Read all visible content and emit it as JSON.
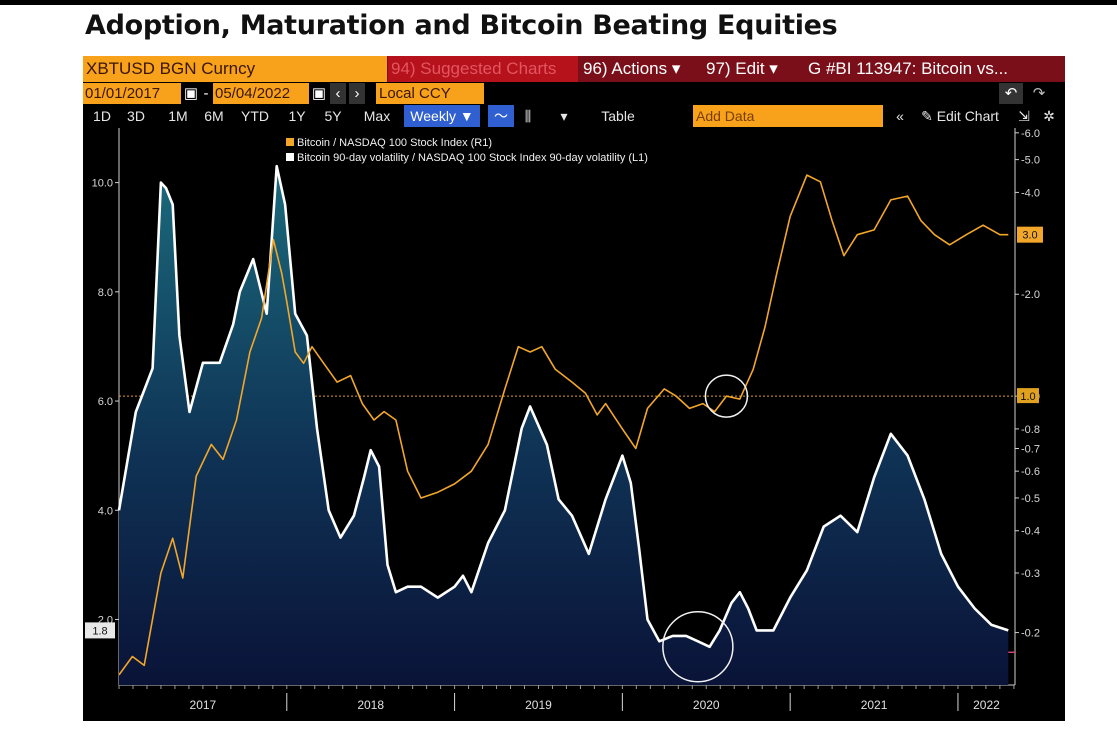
{
  "headline": "Adoption, Maturation and Bitcoin Beating Equities",
  "toolbar": {
    "ticker": "XBTUSD BGN Curncy",
    "suggested": "94) Suggested Charts",
    "actions": "96) Actions ▾",
    "edit": "97) Edit ▾",
    "chart_id": "G #BI 113947: Bitcoin vs...",
    "start_date": "01/01/2017",
    "date_sep": "-",
    "end_date": "05/04/2022",
    "currency": "Local CCY",
    "cal_icon": "calendar-icon",
    "undo_icon": "undo-icon",
    "redo_icon": "redo-icon",
    "ranges": [
      "1D",
      "3D",
      "1M",
      "6M",
      "YTD",
      "1Y",
      "5Y",
      "Max"
    ],
    "frequency": "Weekly ▼",
    "table": "Table",
    "add_data": "Add Data",
    "edit_chart": "Edit Chart"
  },
  "chart_data": {
    "type": "line",
    "legend": [
      {
        "text": "Bitcoin / NASDAQ 100 Stock Index (R1)",
        "color": "#f2a72a"
      },
      {
        "text": "Bitcoin 90-day volatility / NASDAQ 100 Stock Index 90-day volatility (L1)",
        "color": "#ffffff"
      }
    ],
    "legend_position": "top-left",
    "x_ticks": [
      "2017",
      "2018",
      "2019",
      "2020",
      "2021",
      "2022"
    ],
    "x_range": [
      2017.0,
      2022.34
    ],
    "left_axis": {
      "ticks": [
        "2.0",
        "4.0",
        "6.0",
        "8.0",
        "10.0"
      ],
      "ylim": [
        0.8,
        11.0
      ]
    },
    "right_axis": {
      "scale": "log",
      "ticks": [
        "0.2",
        "0.3",
        "0.4",
        "0.5",
        "0.6",
        "0.7",
        "0.8",
        "1.0",
        "2.0",
        "4.0",
        "5.0",
        "6.0"
      ],
      "ylim": [
        0.14,
        6.2
      ]
    },
    "last_value_left": "1.8",
    "last_value_right": "3.0",
    "ref_value_right": "1.0",
    "ref_line_left": 1.4,
    "series": [
      {
        "name": "Bitcoin 90-day volatility / NASDAQ 100 Stock Index 90-day volatility (L1)",
        "axis": "left",
        "color": "#ffffff",
        "fill": true,
        "points": [
          [
            2017.0,
            4.0
          ],
          [
            2017.1,
            5.8
          ],
          [
            2017.2,
            6.6
          ],
          [
            2017.25,
            10.0
          ],
          [
            2017.28,
            9.9
          ],
          [
            2017.32,
            9.6
          ],
          [
            2017.36,
            7.2
          ],
          [
            2017.42,
            5.8
          ],
          [
            2017.5,
            6.7
          ],
          [
            2017.6,
            6.7
          ],
          [
            2017.68,
            7.4
          ],
          [
            2017.72,
            8.0
          ],
          [
            2017.8,
            8.6
          ],
          [
            2017.88,
            7.6
          ],
          [
            2017.94,
            10.3
          ],
          [
            2017.99,
            9.6
          ],
          [
            2018.05,
            7.6
          ],
          [
            2018.12,
            7.2
          ],
          [
            2018.18,
            5.5
          ],
          [
            2018.25,
            4.0
          ],
          [
            2018.32,
            3.5
          ],
          [
            2018.4,
            3.9
          ],
          [
            2018.46,
            4.6
          ],
          [
            2018.5,
            5.1
          ],
          [
            2018.55,
            4.8
          ],
          [
            2018.6,
            3.0
          ],
          [
            2018.65,
            2.5
          ],
          [
            2018.72,
            2.6
          ],
          [
            2018.8,
            2.6
          ],
          [
            2018.9,
            2.4
          ],
          [
            2019.0,
            2.6
          ],
          [
            2019.05,
            2.8
          ],
          [
            2019.1,
            2.5
          ],
          [
            2019.2,
            3.4
          ],
          [
            2019.3,
            4.0
          ],
          [
            2019.4,
            5.5
          ],
          [
            2019.45,
            5.9
          ],
          [
            2019.55,
            5.2
          ],
          [
            2019.62,
            4.2
          ],
          [
            2019.7,
            3.9
          ],
          [
            2019.8,
            3.2
          ],
          [
            2019.9,
            4.2
          ],
          [
            2020.0,
            5.0
          ],
          [
            2020.05,
            4.5
          ],
          [
            2020.1,
            3.3
          ],
          [
            2020.15,
            2.0
          ],
          [
            2020.22,
            1.6
          ],
          [
            2020.3,
            1.7
          ],
          [
            2020.38,
            1.7
          ],
          [
            2020.45,
            1.6
          ],
          [
            2020.52,
            1.5
          ],
          [
            2020.58,
            1.8
          ],
          [
            2020.65,
            2.3
          ],
          [
            2020.7,
            2.5
          ],
          [
            2020.75,
            2.2
          ],
          [
            2020.8,
            1.8
          ],
          [
            2020.9,
            1.8
          ],
          [
            2021.0,
            2.4
          ],
          [
            2021.1,
            2.9
          ],
          [
            2021.2,
            3.7
          ],
          [
            2021.3,
            3.9
          ],
          [
            2021.4,
            3.6
          ],
          [
            2021.5,
            4.6
          ],
          [
            2021.6,
            5.4
          ],
          [
            2021.7,
            5.0
          ],
          [
            2021.8,
            4.2
          ],
          [
            2021.9,
            3.2
          ],
          [
            2022.0,
            2.6
          ],
          [
            2022.1,
            2.2
          ],
          [
            2022.2,
            1.9
          ],
          [
            2022.3,
            1.8
          ]
        ]
      },
      {
        "name": "Bitcoin / NASDAQ 100 Stock Index (R1)",
        "axis": "right",
        "color": "#f2a72a",
        "fill": false,
        "points": [
          [
            2017.0,
            0.15
          ],
          [
            2017.08,
            0.17
          ],
          [
            2017.15,
            0.16
          ],
          [
            2017.25,
            0.3
          ],
          [
            2017.32,
            0.38
          ],
          [
            2017.38,
            0.29
          ],
          [
            2017.46,
            0.58
          ],
          [
            2017.55,
            0.72
          ],
          [
            2017.62,
            0.65
          ],
          [
            2017.7,
            0.85
          ],
          [
            2017.78,
            1.35
          ],
          [
            2017.85,
            1.7
          ],
          [
            2017.92,
            2.9
          ],
          [
            2017.97,
            2.3
          ],
          [
            2018.0,
            1.9
          ],
          [
            2018.05,
            1.35
          ],
          [
            2018.1,
            1.25
          ],
          [
            2018.15,
            1.4
          ],
          [
            2018.22,
            1.25
          ],
          [
            2018.3,
            1.1
          ],
          [
            2018.38,
            1.15
          ],
          [
            2018.45,
            0.95
          ],
          [
            2018.52,
            0.85
          ],
          [
            2018.58,
            0.9
          ],
          [
            2018.65,
            0.85
          ],
          [
            2018.72,
            0.6
          ],
          [
            2018.8,
            0.5
          ],
          [
            2018.9,
            0.52
          ],
          [
            2019.0,
            0.55
          ],
          [
            2019.1,
            0.6
          ],
          [
            2019.2,
            0.72
          ],
          [
            2019.3,
            1.05
          ],
          [
            2019.38,
            1.4
          ],
          [
            2019.45,
            1.35
          ],
          [
            2019.52,
            1.4
          ],
          [
            2019.6,
            1.2
          ],
          [
            2019.7,
            1.1
          ],
          [
            2019.78,
            1.02
          ],
          [
            2019.85,
            0.88
          ],
          [
            2019.9,
            0.95
          ],
          [
            2020.0,
            0.8
          ],
          [
            2020.08,
            0.7
          ],
          [
            2020.15,
            0.92
          ],
          [
            2020.25,
            1.05
          ],
          [
            2020.32,
            1.0
          ],
          [
            2020.4,
            0.92
          ],
          [
            2020.48,
            0.95
          ],
          [
            2020.55,
            0.9
          ],
          [
            2020.62,
            1.0
          ],
          [
            2020.7,
            0.98
          ],
          [
            2020.78,
            1.2
          ],
          [
            2020.85,
            1.6
          ],
          [
            2020.92,
            2.3
          ],
          [
            2021.0,
            3.4
          ],
          [
            2021.1,
            4.5
          ],
          [
            2021.18,
            4.3
          ],
          [
            2021.25,
            3.3
          ],
          [
            2021.32,
            2.6
          ],
          [
            2021.4,
            3.0
          ],
          [
            2021.5,
            3.1
          ],
          [
            2021.6,
            3.8
          ],
          [
            2021.7,
            3.9
          ],
          [
            2021.78,
            3.3
          ],
          [
            2021.86,
            3.0
          ],
          [
            2021.95,
            2.8
          ],
          [
            2022.05,
            3.0
          ],
          [
            2022.15,
            3.2
          ],
          [
            2022.25,
            3.0
          ],
          [
            2022.3,
            3.0
          ]
        ]
      }
    ],
    "annotations": [
      {
        "type": "circle",
        "at": [
          2020.45,
          1.5
        ],
        "axis": "left"
      },
      {
        "type": "circle",
        "at": [
          2020.62,
          1.0
        ],
        "axis": "right"
      }
    ]
  }
}
